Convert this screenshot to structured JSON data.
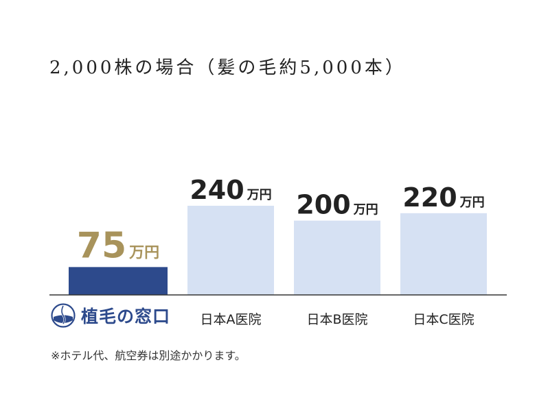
{
  "title": "2,000株の場合（髪の毛約5,000本）",
  "note": "※ホテル代、航空券は別途かかります。",
  "logo": {
    "name": "植毛の窓口",
    "icon": "hair-follicle-icon"
  },
  "colors": {
    "highlight_bar": "#2d4a8c",
    "other_bar": "#d6e1f3",
    "highlight_value": "#a8935b",
    "other_value": "#222222",
    "baseline": "#333333"
  },
  "chart_data": {
    "type": "bar",
    "categories": [
      "植毛の窓口",
      "日本A医院",
      "日本B医院",
      "日本C医院"
    ],
    "values": [
      75,
      240,
      200,
      220
    ],
    "unit": "万円",
    "title": "2,000株の場合（髪の毛約5,000本）",
    "xlabel": "",
    "ylabel": "",
    "grid": false,
    "legend": "none",
    "highlight_index": 0
  }
}
